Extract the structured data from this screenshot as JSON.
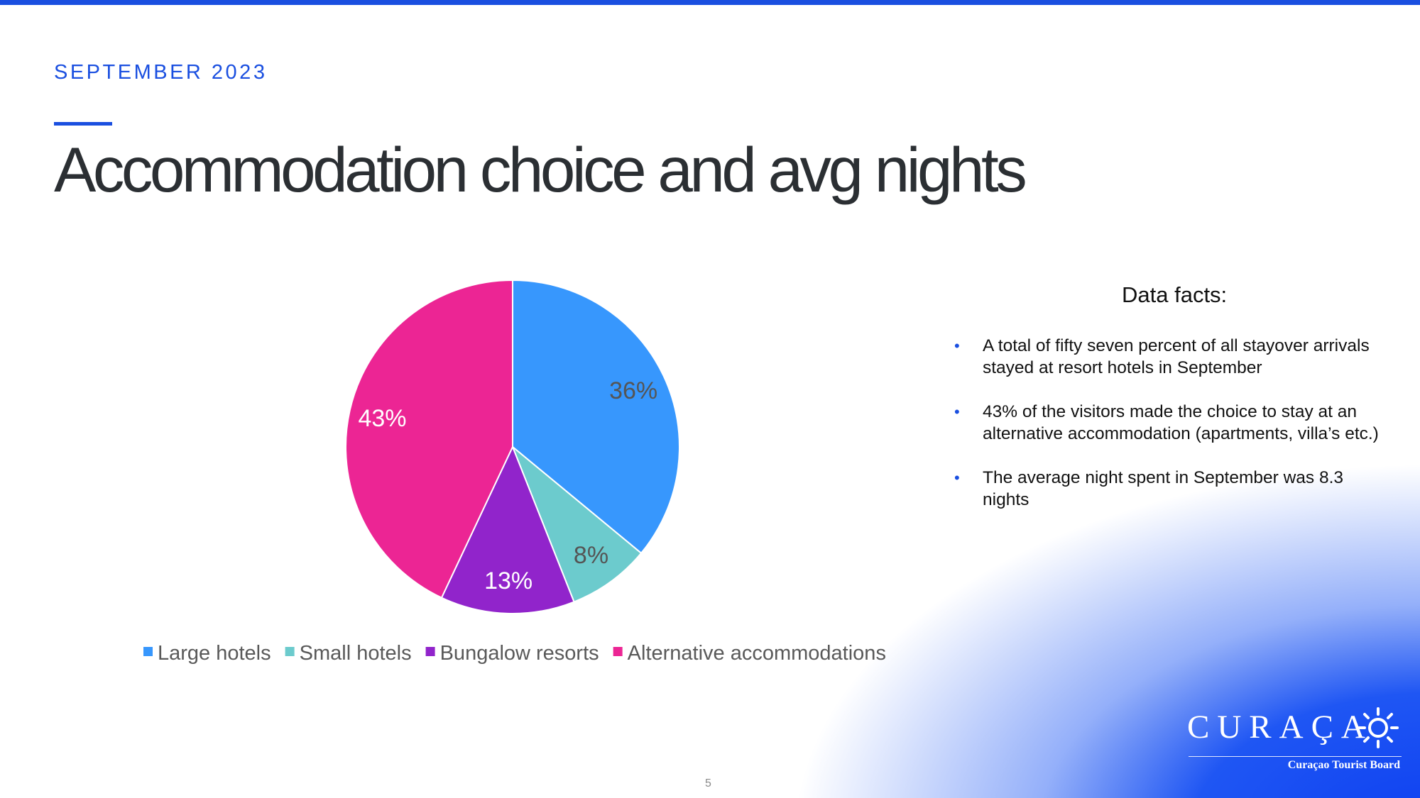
{
  "slide": {
    "eyebrow": "SEPTEMBER 2023",
    "title": "Accommodation choice and avg nights",
    "page_number": "5"
  },
  "facts": {
    "heading": "Data facts:",
    "bullets": [
      "A total of fifty seven percent of all stayover arrivals stayed at resort hotels in September",
      "43% of the visitors made the choice to stay at an alternative accommodation (apartments, villa’s etc.)",
      "The average night spent in September was 8.3 nights"
    ]
  },
  "logo": {
    "wordmark": "CURAÇAO",
    "subtitle": "Curaçao Tourist Board"
  },
  "colors": {
    "accent": "#1a4fe0",
    "title": "#2b2f33"
  },
  "chart_data": {
    "type": "pie",
    "title": "",
    "categories": [
      "Large hotels",
      "Small hotels",
      "Bungalow resorts",
      "Alternative accommodations"
    ],
    "values": [
      36,
      8,
      13,
      43
    ],
    "labels": [
      "36%",
      "8%",
      "13%",
      "43%"
    ],
    "colors": [
      "#3797fd",
      "#6ccbcd",
      "#9124cb",
      "#ec2594"
    ],
    "label_colors": [
      "#555555",
      "#555555",
      "#ffffff",
      "#ffffff"
    ],
    "legend_position": "bottom"
  }
}
